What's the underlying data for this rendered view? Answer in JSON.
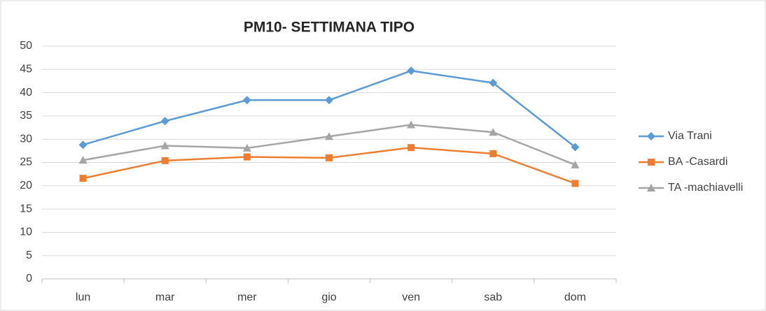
{
  "chart_data": {
    "type": "line",
    "title": "PM10- SETTIMANA TIPO",
    "categories": [
      "lun",
      "mar",
      "mer",
      "gio",
      "ven",
      "sab",
      "dom"
    ],
    "series": [
      {
        "name": "Via Trani",
        "color": "#5b9bd5",
        "marker": "diamond",
        "values": [
          28.8,
          33.9,
          38.4,
          38.4,
          44.7,
          42.1,
          28.3
        ]
      },
      {
        "name": "BA -Casardi",
        "color": "#ed7d31",
        "marker": "square",
        "values": [
          21.6,
          25.4,
          26.2,
          26.0,
          28.2,
          26.9,
          20.5
        ]
      },
      {
        "name": "TA -machiavelli",
        "color": "#a5a5a5",
        "marker": "triangle",
        "values": [
          25.5,
          28.6,
          28.1,
          30.6,
          33.1,
          31.5,
          24.5
        ]
      }
    ],
    "ylim": [
      0,
      50
    ],
    "yticks": [
      0,
      5,
      10,
      15,
      20,
      25,
      30,
      35,
      40,
      45,
      50
    ],
    "grid": true,
    "legend": "right"
  }
}
